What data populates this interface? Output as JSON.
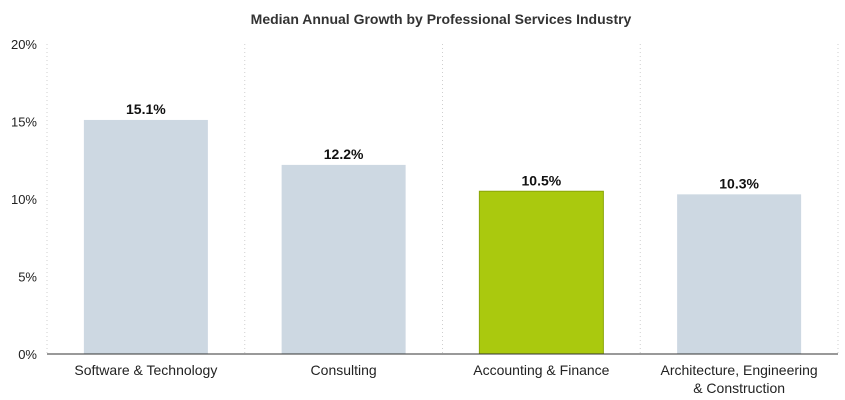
{
  "chart_data": {
    "type": "bar",
    "title": "Median Annual Growth by Professional Services Industry",
    "xlabel": "",
    "ylabel": "",
    "categories": [
      "Software & Technology",
      "Consulting",
      "Accounting & Finance",
      "Architecture, Engineering & Construction"
    ],
    "category_lines": [
      [
        "Software & Technology"
      ],
      [
        "Consulting"
      ],
      [
        "Accounting & Finance"
      ],
      [
        "Architecture, Engineering",
        "& Construction"
      ]
    ],
    "values": [
      15.1,
      12.2,
      10.5,
      10.3
    ],
    "data_labels": [
      "15.1%",
      "12.2%",
      "10.5%",
      "10.3%"
    ],
    "ylim": [
      0,
      20
    ],
    "yticks": [
      0,
      5,
      10,
      15,
      20
    ],
    "ytick_labels": [
      "0%",
      "5%",
      "10%",
      "15%",
      "20%"
    ],
    "highlight_index": 2,
    "colors": {
      "bar": "#cdd8e2",
      "highlight": "#aac90e",
      "highlight_border": "#8aa608"
    },
    "grid": "vertical-dotted",
    "legend": "none"
  }
}
